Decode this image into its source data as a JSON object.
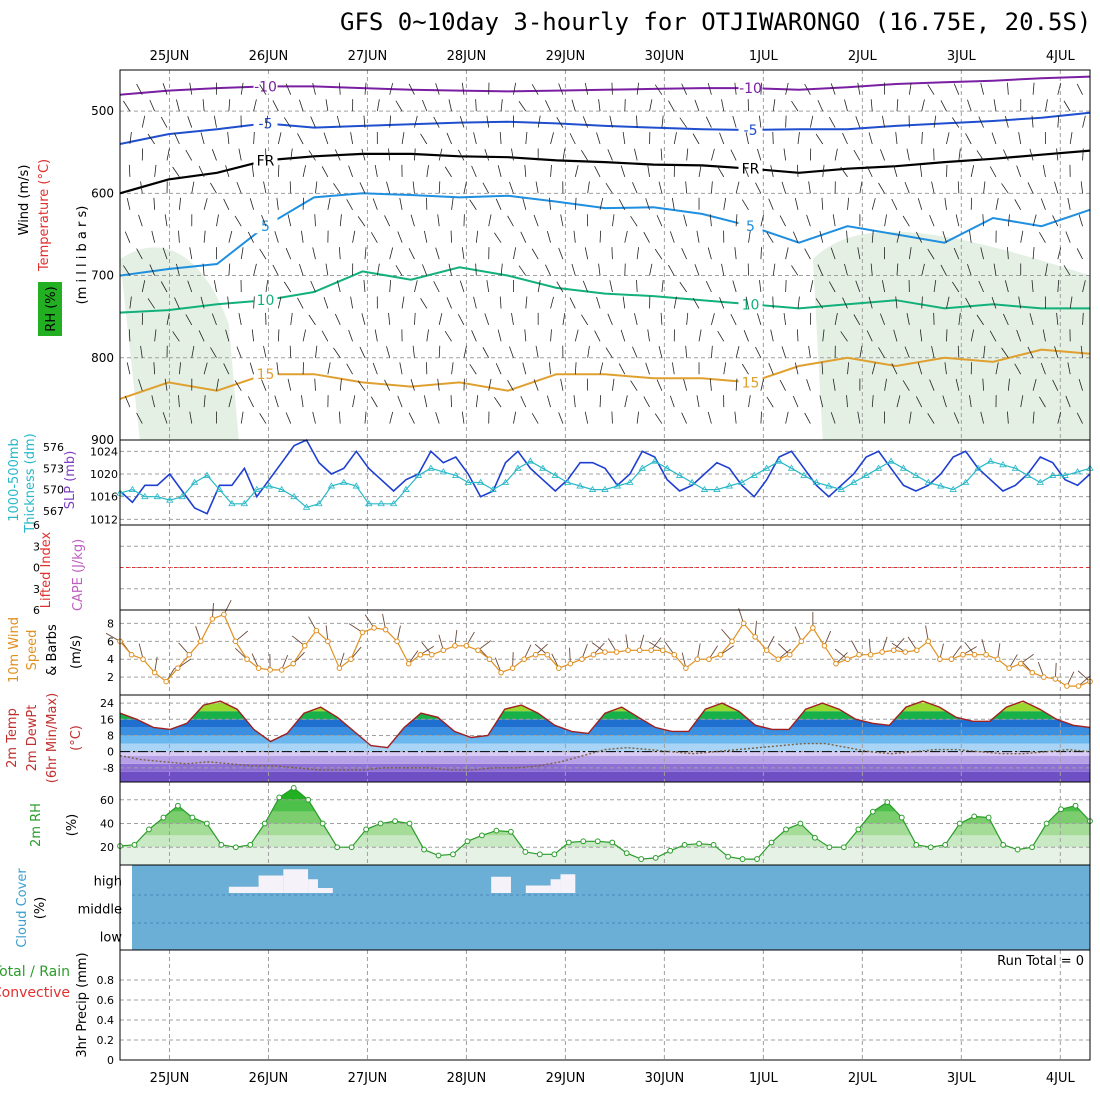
{
  "title": "GFS 0~10day 3-hourly for OTJIWARONGO (16.75E, 20.5S)",
  "chart_data": {
    "type": "meteogram",
    "date_labels": [
      "25JUN",
      "26JUN",
      "27JUN",
      "28JUN",
      "29JUN",
      "30JUN",
      "1JUL",
      "2JUL",
      "3JUL",
      "4JUL"
    ],
    "run_total_text": "Run Total = 0",
    "panels": [
      {
        "id": "upper_air",
        "labels": [
          "Wind (m/s)",
          "Temperature (°C)",
          "RH (%)",
          "(m i l l i b a r s)"
        ],
        "label_colors": [
          "#000000",
          "#e03030",
          "#2a9d2a",
          "#000000"
        ],
        "y_ticks": [
          500,
          600,
          700,
          800,
          900
        ],
        "ylim": [
          450,
          900
        ],
        "contour_labels": [
          "-10",
          "-5",
          "FR",
          "5",
          "10",
          "15"
        ],
        "series": [
          {
            "name": "-10",
            "color": "#7a1fa2",
            "values": [
              480,
              475,
              472,
              470,
              470,
              472,
              474,
              475,
              476,
              475,
              474,
              473,
              472,
              472,
              474,
              471,
              467,
              465,
              463,
              460,
              458
            ]
          },
          {
            "name": "-5",
            "color": "#1f4fcf",
            "values": [
              540,
              528,
              522,
              515,
              520,
              518,
              516,
              514,
              513,
              515,
              518,
              520,
              522,
              523,
              522,
              522,
              518,
              515,
              512,
              508,
              502
            ]
          },
          {
            "name": "FR",
            "color": "#000000",
            "values": [
              600,
              583,
              575,
              560,
              555,
              552,
              552,
              555,
              556,
              560,
              562,
              565,
              566,
              570,
              575,
              570,
              567,
              562,
              558,
              553,
              548
            ]
          },
          {
            "name": "5",
            "color": "#1f8fdf",
            "values": [
              700,
              692,
              686,
              640,
              605,
              600,
              602,
              605,
              603,
              610,
              618,
              617,
              625,
              640,
              660,
              640,
              650,
              660,
              630,
              640,
              620
            ]
          },
          {
            "name": "10",
            "color": "#12b07a",
            "values": [
              745,
              742,
              735,
              730,
              720,
              695,
              705,
              690,
              700,
              715,
              722,
              725,
              730,
              735,
              740,
              735,
              730,
              740,
              735,
              740,
              740
            ]
          },
          {
            "name": "15",
            "color": "#e0a030",
            "values": [
              850,
              830,
              840,
              820,
              820,
              830,
              835,
              830,
              840,
              820,
              820,
              825,
              825,
              830,
              810,
              800,
              810,
              800,
              805,
              790,
              795
            ]
          }
        ]
      },
      {
        "id": "pressure",
        "labels": [
          "1000-500mb",
          "Thickness (dm)",
          "SLP (mb)"
        ],
        "label_colors": [
          "#28b8c8",
          "#28b8c8",
          "#8040c0"
        ],
        "left_ticks": [
          576,
          573,
          570,
          567
        ],
        "right_ticks": [
          1024,
          1020,
          1016,
          1012
        ],
        "series": [
          {
            "name": "SLP (mb)",
            "color": "#1f3fd0",
            "values": [
              1017,
              1015,
              1018,
              1018,
              1020,
              1017,
              1014,
              1013,
              1018,
              1018,
              1021,
              1016,
              1019,
              1022,
              1025,
              1026,
              1022,
              1020,
              1021,
              1024,
              1021,
              1019,
              1017,
              1019,
              1020,
              1024,
              1022,
              1023,
              1020,
              1016,
              1017,
              1022,
              1024,
              1021,
              1019,
              1017,
              1019,
              1022,
              1022,
              1021,
              1018,
              1020,
              1024,
              1023,
              1019,
              1017,
              1018,
              1020,
              1022,
              1021,
              1018,
              1016,
              1019,
              1023,
              1024,
              1021,
              1018,
              1016,
              1018,
              1020,
              1023,
              1024,
              1021,
              1018,
              1017,
              1018,
              1020,
              1023,
              1024,
              1021,
              1019,
              1017,
              1018,
              1020,
              1023,
              1022,
              1019,
              1018,
              1020
            ]
          },
          {
            "name": "1000-500mb Thickness (dm)",
            "color": "#28b8c8",
            "values": [
              569.5,
              570,
              569,
              569,
              568.5,
              569,
              571,
              572,
              570,
              568,
              568,
              570,
              570.5,
              570,
              569,
              567.5,
              568,
              570.5,
              571,
              570.5,
              568,
              568,
              568,
              570,
              572,
              573,
              572.5,
              572,
              571,
              571,
              570,
              571,
              573,
              574,
              573,
              572,
              571,
              570.5,
              570,
              570,
              570.5,
              571,
              573,
              574,
              573,
              572,
              571,
              570,
              570,
              570.5,
              571,
              572,
              573,
              574,
              573,
              572,
              571,
              570.5,
              570,
              571,
              572,
              573,
              574,
              573,
              572,
              571,
              570.5,
              570,
              571,
              573,
              574,
              573.5,
              573,
              572,
              571,
              572,
              572,
              572.5,
              573
            ]
          }
        ]
      },
      {
        "id": "stability",
        "labels": [
          "Lifted Index",
          "CAPE (J/kg)"
        ],
        "label_colors": [
          "#e03030",
          "#c060c0"
        ],
        "y_ticks": [
          -6,
          -3,
          0,
          3,
          6
        ],
        "ylim": [
          -6,
          6
        ],
        "zero_line_color": "#e03030",
        "series": [
          {
            "name": "Lifted Index",
            "color": "#e03030",
            "values": []
          }
        ]
      },
      {
        "id": "wind10m",
        "labels": [
          "10m Wind",
          "Speed",
          "& Barbs",
          "(m/s)"
        ],
        "label_colors": [
          "#e09020",
          "#e09020",
          "#000000",
          "#000000"
        ],
        "y_ticks": [
          2,
          4,
          6,
          8
        ],
        "ylim": [
          0,
          9.5
        ],
        "series": [
          {
            "name": "10m Wind Speed",
            "color": "#e09020",
            "values": [
              6.0,
              4.5,
              4.0,
              2.5,
              1.5,
              3.0,
              4.5,
              6.0,
              8.5,
              9.0,
              6.0,
              4.0,
              3.0,
              2.8,
              2.8,
              3.5,
              5.5,
              7.2,
              6.0,
              3.0,
              4.0,
              7.0,
              7.5,
              7.3,
              6.0,
              3.5,
              4.5,
              4.5,
              5.0,
              5.5,
              5.5,
              5.0,
              4.0,
              2.5,
              3.0,
              4.0,
              4.5,
              4.5,
              3.0,
              3.5,
              4.0,
              4.5,
              4.8,
              4.8,
              5.0,
              5.0,
              5.0,
              5.0,
              4.5,
              3.0,
              4.0,
              4.0,
              4.5,
              6.0,
              8.0,
              6.5,
              5.0,
              4.0,
              4.5,
              6.0,
              7.5,
              5.5,
              3.5,
              4.0,
              4.5,
              4.5,
              4.8,
              5.0,
              4.8,
              5.0,
              6.0,
              4.0,
              4.0,
              4.5,
              4.5,
              4.5,
              4.0,
              3.0,
              3.5,
              2.5,
              2.0,
              1.8,
              1.0,
              1.0,
              1.5
            ]
          }
        ]
      },
      {
        "id": "temp2m",
        "labels": [
          "2m Temp",
          "2m DewPt",
          "(6hr Min/Max)",
          "(°C)"
        ],
        "label_colors": [
          "#c03030",
          "#c03030",
          "#c03030",
          "#c03030"
        ],
        "y_ticks": [
          24,
          16,
          8,
          0,
          -8
        ],
        "ylim": [
          -15,
          28
        ],
        "series": [
          {
            "name": "2m Temp",
            "color": "#a02020",
            "values": [
              19,
              16,
              12,
              11,
              14,
              23,
              25,
              21,
              11,
              5,
              9,
              19,
              22,
              17,
              10,
              3,
              2,
              12,
              19,
              17,
              10,
              7,
              8,
              21,
              23,
              19,
              13,
              10,
              9,
              19,
              22,
              17,
              12,
              10,
              10,
              21,
              24,
              20,
              13,
              11,
              11,
              21,
              24,
              21,
              16,
              14,
              13,
              22,
              25,
              22,
              17,
              15,
              15,
              22,
              25,
              21,
              16,
              13,
              12
            ]
          },
          {
            "name": "2m DewPt",
            "color": "#7a6040",
            "values": [
              -2,
              -4,
              -5,
              -6,
              -5,
              -6,
              -7,
              -7,
              -8,
              -9,
              -9,
              -9,
              -8,
              -8,
              -8,
              -9,
              -9,
              -8,
              -8,
              -7,
              -5,
              -2,
              1,
              2,
              1,
              0,
              -1,
              0,
              1,
              2,
              3,
              4,
              4,
              2,
              0,
              -1,
              0,
              1,
              1,
              0,
              -1,
              -1,
              0,
              1,
              0
            ]
          }
        ]
      },
      {
        "id": "rh2m",
        "labels": [
          "2m RH",
          "(%)"
        ],
        "label_colors": [
          "#2a9d2a",
          "#000000"
        ],
        "y_ticks": [
          20,
          40,
          60
        ],
        "ylim": [
          5,
          75
        ],
        "series": [
          {
            "name": "2m RH",
            "color": "#2a9d2a",
            "values": [
              21,
              22,
              35,
              45,
              55,
              45,
              40,
              22,
              20,
              22,
              40,
              62,
              70,
              60,
              40,
              20,
              20,
              35,
              40,
              42,
              40,
              18,
              13,
              14,
              25,
              30,
              34,
              33,
              16,
              14,
              14,
              24,
              25,
              25,
              24,
              15,
              10,
              11,
              17,
              22,
              23,
              22,
              12,
              10,
              10,
              24,
              35,
              40,
              28,
              20,
              20,
              35,
              50,
              58,
              45,
              22,
              20,
              22,
              40,
              46,
              45,
              22,
              18,
              20,
              40,
              52,
              55,
              42
            ]
          }
        ]
      },
      {
        "id": "cloud",
        "labels": [
          "Cloud Cover",
          "(%)"
        ],
        "label_colors": [
          "#3aa0d0",
          "#000000"
        ],
        "y_ticks": [
          "high",
          "middle",
          "low"
        ],
        "bars": [
          {
            "layer": "high",
            "x0": 1.6,
            "x1": 1.9,
            "value": 25
          },
          {
            "layer": "high",
            "x0": 1.9,
            "x1": 2.15,
            "value": 70
          },
          {
            "layer": "high",
            "x0": 2.15,
            "x1": 2.4,
            "value": 95
          },
          {
            "layer": "high",
            "x0": 2.4,
            "x1": 2.5,
            "value": 55
          },
          {
            "layer": "high",
            "x0": 2.5,
            "x1": 2.65,
            "value": 20
          },
          {
            "layer": "high",
            "x0": 4.25,
            "x1": 4.45,
            "value": 65
          },
          {
            "layer": "high",
            "x0": 4.6,
            "x1": 4.85,
            "value": 30
          },
          {
            "layer": "high",
            "x0": 4.85,
            "x1": 4.95,
            "value": 55
          },
          {
            "layer": "high",
            "x0": 4.95,
            "x1": 5.1,
            "value": 75
          }
        ]
      },
      {
        "id": "precip",
        "labels": [
          "Total / Rain",
          "Convective",
          "3hr Precip (mm)"
        ],
        "label_colors": [
          "#2a9d2a",
          "#e03030",
          "#000000"
        ],
        "y_ticks": [
          0,
          0.2,
          0.4,
          0.6,
          0.8
        ],
        "ylim": [
          0,
          1
        ],
        "series": [
          {
            "name": "3hr Precip",
            "color": "#2a9d2a",
            "values": []
          }
        ]
      }
    ]
  },
  "colors": {
    "grid": "#a0a0a0",
    "frame": "#000000",
    "rh_fill": "#dcecdc",
    "cloud_bg": "#6baed6",
    "cloud_bar": "#f5f2fa"
  }
}
